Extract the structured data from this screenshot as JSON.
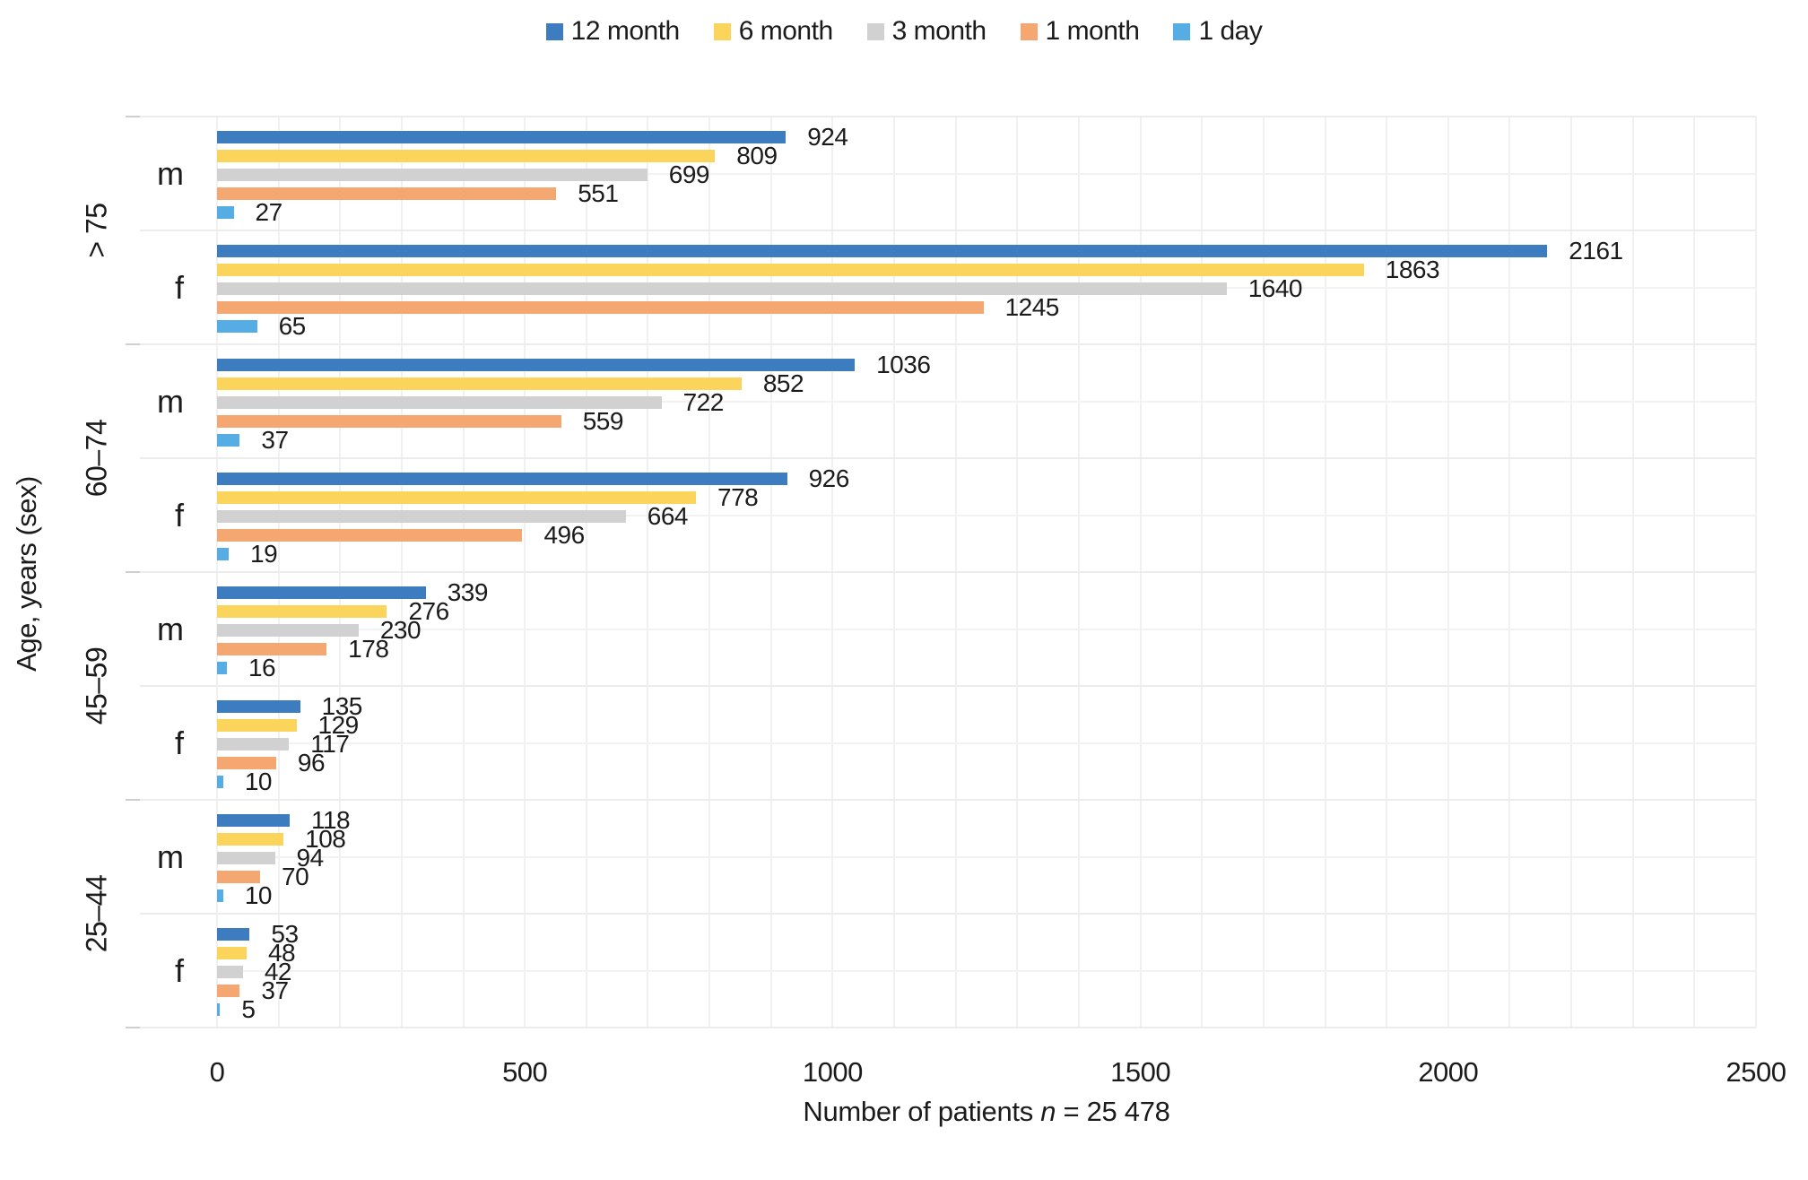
{
  "legend": {
    "items": [
      {
        "label": "12 month",
        "color": "#3D7DBF"
      },
      {
        "label": "6 month",
        "color": "#FBD45C"
      },
      {
        "label": "3 month",
        "color": "#D1D1D1"
      },
      {
        "label": "1 month",
        "color": "#F4A771"
      },
      {
        "label": "1 day",
        "color": "#55ADE3"
      }
    ]
  },
  "axes": {
    "y_label": "Age, years (sex)",
    "x_label_prefix": "Number of patients ",
    "x_label_var": "n",
    "x_label_suffix": " = 25 478",
    "x_ticks": [
      "0",
      "500",
      "1000",
      "1500",
      "2000",
      "2500"
    ]
  },
  "chart_data": {
    "type": "bar",
    "orientation": "horizontal",
    "title": "",
    "xlabel": "Number of patients n = 25 478",
    "ylabel": "Age, years (sex)",
    "xlim": [
      0,
      2500
    ],
    "xticks": [
      0,
      500,
      1000,
      1500,
      2000,
      2500
    ],
    "grid": "on",
    "legend_position": "top-center",
    "series_names": [
      "12 month",
      "6 month",
      "3 month",
      "1 month",
      "1 day"
    ],
    "series_colors": [
      "#3D7DBF",
      "#FBD45C",
      "#D1D1D1",
      "#F4A771",
      "#55ADE3"
    ],
    "groups": [
      {
        "age": "> 75",
        "rows": [
          {
            "sex": "m",
            "values": [
              924,
              809,
              699,
              551,
              27
            ]
          },
          {
            "sex": "f",
            "values": [
              2161,
              1863,
              1640,
              1245,
              65
            ]
          }
        ]
      },
      {
        "age": "60–74",
        "rows": [
          {
            "sex": "m",
            "values": [
              1036,
              852,
              722,
              559,
              37
            ]
          },
          {
            "sex": "f",
            "values": [
              926,
              778,
              664,
              496,
              19
            ]
          }
        ]
      },
      {
        "age": "45–59",
        "rows": [
          {
            "sex": "m",
            "values": [
              339,
              276,
              230,
              178,
              16
            ]
          },
          {
            "sex": "f",
            "values": [
              135,
              129,
              117,
              96,
              10
            ]
          }
        ]
      },
      {
        "age": "25–44",
        "rows": [
          {
            "sex": "m",
            "values": [
              118,
              108,
              94,
              70,
              10
            ]
          },
          {
            "sex": "f",
            "values": [
              53,
              48,
              42,
              37,
              5
            ]
          }
        ]
      }
    ]
  }
}
